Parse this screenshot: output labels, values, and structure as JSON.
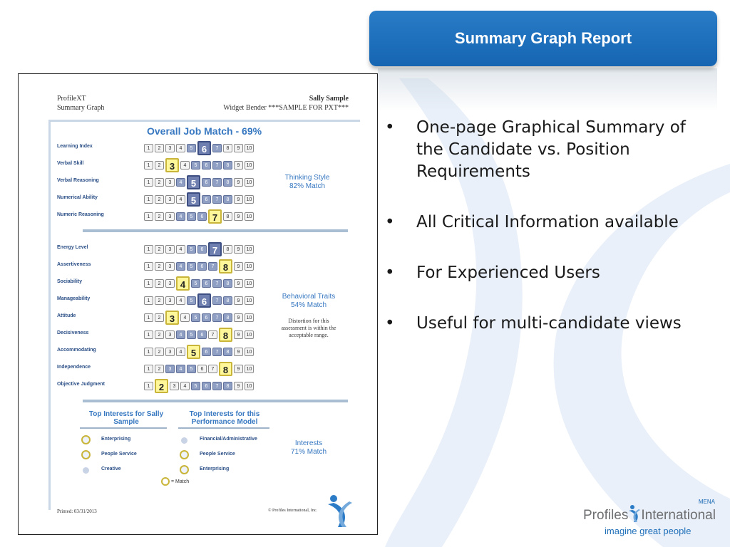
{
  "slide": {
    "title": "Summary Graph Report",
    "bullets": [
      "One-page Graphical Summary of the Candidate vs. Position Requirements",
      "All Critical Information available",
      "For Experienced Users",
      "Useful for multi-candidate views"
    ],
    "bullet_glyph": "•",
    "accent_color": "#1a6ab6"
  },
  "report": {
    "header_left": [
      "ProfileXT",
      "Summary Graph"
    ],
    "header_right_name": "Sally Sample",
    "header_right_sub": "Widget Bender ***SAMPLE FOR PXT***",
    "overall_title": "Overall Job Match - 69%",
    "scale": [
      "1",
      "2",
      "3",
      "4",
      "5",
      "6",
      "7",
      "8",
      "9",
      "10"
    ],
    "thinking": {
      "title": "Thinking Style",
      "match": "82% Match",
      "rows": [
        {
          "label": "Learning Index",
          "score": 6,
          "range": [
            5,
            7
          ]
        },
        {
          "label": "Verbal Skill",
          "score": 3,
          "range": [
            5,
            8
          ]
        },
        {
          "label": "Verbal Reasoning",
          "score": 5,
          "range": [
            4,
            8
          ]
        },
        {
          "label": "Numerical Ability",
          "score": 5,
          "range": [
            5,
            8
          ]
        },
        {
          "label": "Numeric Reasoning",
          "score": 7,
          "range": [
            4,
            6
          ]
        }
      ]
    },
    "behavioral": {
      "title": "Behavioral Traits",
      "match": "54% Match",
      "distortion": "Distortion for this assessment is within the acceptable range.",
      "rows": [
        {
          "label": "Energy Level",
          "score": 7,
          "range": [
            5,
            7
          ]
        },
        {
          "label": "Assertiveness",
          "score": 8,
          "range": [
            4,
            7
          ]
        },
        {
          "label": "Sociability",
          "score": 4,
          "range": [
            5,
            8
          ]
        },
        {
          "label": "Manageability",
          "score": 6,
          "range": [
            5,
            8
          ]
        },
        {
          "label": "Attitude",
          "score": 3,
          "range": [
            5,
            8
          ]
        },
        {
          "label": "Decisiveness",
          "score": 8,
          "range": [
            4,
            6
          ]
        },
        {
          "label": "Accommodating",
          "score": 5,
          "range": [
            6,
            8
          ]
        },
        {
          "label": "Independence",
          "score": 8,
          "range": [
            3,
            5
          ]
        },
        {
          "label": "Objective Judgment",
          "score": 2,
          "range": [
            5,
            8
          ]
        }
      ]
    },
    "interests": {
      "candidate_heading": "Top Interests for Sally Sample",
      "model_heading": "Top Interests for this Performance Model",
      "candidate": [
        {
          "label": "Enterprising",
          "match": true
        },
        {
          "label": "People Service",
          "match": true
        },
        {
          "label": "Creative",
          "match": false
        }
      ],
      "model": [
        {
          "label": "Financial/Administrative",
          "match": false
        },
        {
          "label": "People Service",
          "match": true
        },
        {
          "label": "Enterprising",
          "match": true
        }
      ],
      "title": "Interests",
      "match": "71% Match",
      "key": "= Match"
    },
    "printed": "Printed: 03/31/2013",
    "copyright": "© Profiles International, Inc."
  },
  "brand": {
    "region": "MENA",
    "name_left": "Profiles",
    "name_right": "International",
    "tagline": "imagine great people"
  }
}
